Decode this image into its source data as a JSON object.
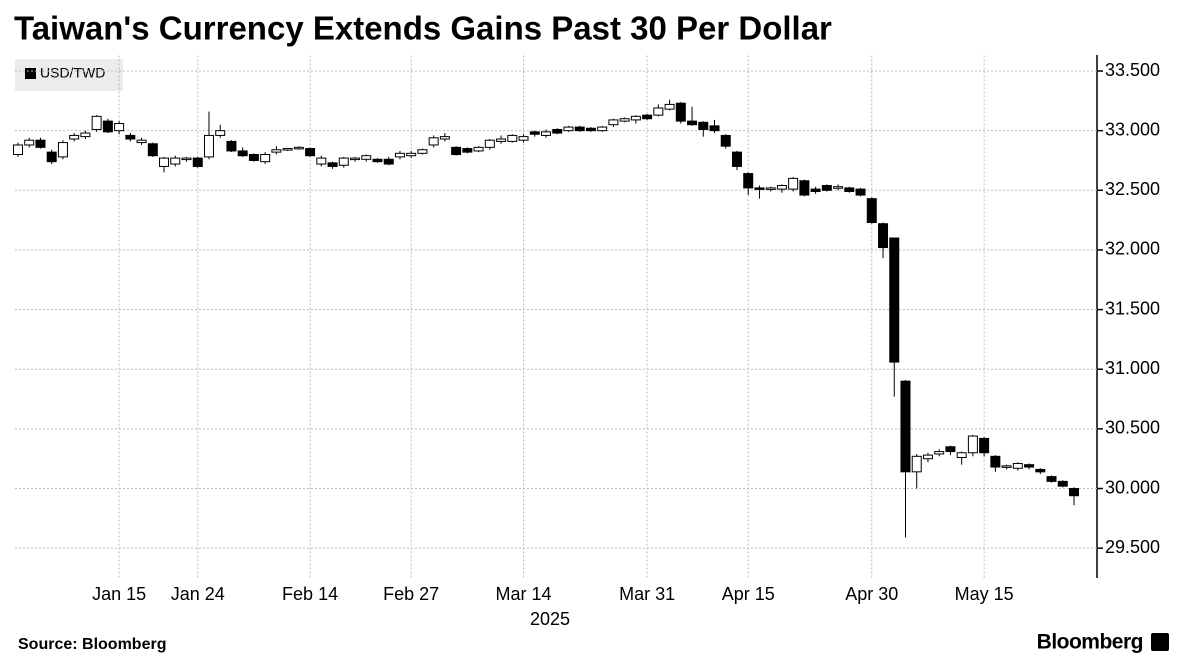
{
  "chart_data": {
    "type": "candlestick",
    "title": "Taiwan's Currency Extends Gains Past 30 Per Dollar",
    "xlabel": "2025",
    "source": "Source: Bloomberg",
    "brand": "Bloomberg",
    "legend": "top-left",
    "grid": true,
    "up_color": "#ffffff",
    "down_color": "#000000",
    "x": [
      "2025-01-02",
      "2025-01-03",
      "2025-01-06",
      "2025-01-07",
      "2025-01-08",
      "2025-01-09",
      "2025-01-10",
      "2025-01-13",
      "2025-01-14",
      "2025-01-15",
      "2025-01-16",
      "2025-01-17",
      "2025-01-20",
      "2025-01-21",
      "2025-01-22",
      "2025-01-23",
      "2025-01-24",
      "2025-02-03",
      "2025-02-04",
      "2025-02-05",
      "2025-02-06",
      "2025-02-07",
      "2025-02-10",
      "2025-02-11",
      "2025-02-12",
      "2025-02-13",
      "2025-02-14",
      "2025-02-17",
      "2025-02-18",
      "2025-02-19",
      "2025-02-20",
      "2025-02-21",
      "2025-02-24",
      "2025-02-25",
      "2025-02-26",
      "2025-02-27",
      "2025-03-03",
      "2025-03-04",
      "2025-03-05",
      "2025-03-06",
      "2025-03-07",
      "2025-03-10",
      "2025-03-11",
      "2025-03-12",
      "2025-03-13",
      "2025-03-14",
      "2025-03-17",
      "2025-03-18",
      "2025-03-19",
      "2025-03-20",
      "2025-03-21",
      "2025-03-24",
      "2025-03-25",
      "2025-03-26",
      "2025-03-27",
      "2025-03-28",
      "2025-03-31",
      "2025-04-01",
      "2025-04-02",
      "2025-04-07",
      "2025-04-08",
      "2025-04-09",
      "2025-04-10",
      "2025-04-11",
      "2025-04-14",
      "2025-04-15",
      "2025-04-16",
      "2025-04-17",
      "2025-04-18",
      "2025-04-21",
      "2025-04-22",
      "2025-04-23",
      "2025-04-24",
      "2025-04-25",
      "2025-04-28",
      "2025-04-29",
      "2025-04-30",
      "2025-05-02",
      "2025-05-05",
      "2025-05-06",
      "2025-05-07",
      "2025-05-08",
      "2025-05-09",
      "2025-05-12",
      "2025-05-13",
      "2025-05-14",
      "2025-05-15",
      "2025-05-16",
      "2025-05-19",
      "2025-05-20",
      "2025-05-21",
      "2025-05-22",
      "2025-05-23",
      "2025-05-26",
      "2025-05-27"
    ],
    "series": [
      {
        "name": "USD/TWD",
        "open": [
          32.8,
          32.88,
          32.92,
          32.82,
          32.78,
          32.93,
          32.95,
          33.01,
          33.08,
          33.0,
          32.96,
          32.9,
          32.89,
          32.7,
          32.72,
          32.76,
          32.77,
          32.78,
          32.96,
          32.91,
          32.83,
          32.8,
          32.74,
          32.82,
          32.84,
          32.85,
          32.85,
          32.72,
          32.73,
          32.71,
          32.76,
          32.76,
          32.76,
          32.76,
          32.78,
          32.79,
          32.81,
          32.88,
          32.93,
          32.86,
          32.85,
          32.83,
          32.86,
          32.91,
          32.91,
          32.92,
          32.99,
          32.96,
          33.01,
          33.0,
          33.03,
          33.02,
          33.0,
          33.05,
          33.08,
          33.09,
          33.13,
          33.13,
          33.18,
          33.23,
          33.08,
          33.07,
          33.04,
          32.96,
          32.82,
          32.64,
          32.52,
          32.51,
          32.51,
          32.51,
          32.58,
          32.51,
          32.54,
          32.52,
          32.52,
          32.51,
          32.43,
          32.22,
          32.1,
          30.9,
          30.14,
          30.25,
          30.29,
          30.35,
          30.26,
          30.3,
          30.42,
          30.27,
          30.18,
          30.17,
          30.2,
          30.16,
          30.1,
          30.06,
          30.0
        ],
        "high": [
          32.9,
          32.94,
          32.94,
          32.84,
          32.92,
          32.98,
          33.0,
          33.13,
          33.1,
          33.08,
          32.98,
          32.94,
          32.9,
          32.78,
          32.79,
          32.78,
          32.78,
          33.16,
          33.05,
          32.92,
          32.86,
          32.81,
          32.82,
          32.87,
          32.85,
          32.87,
          32.86,
          32.79,
          32.74,
          32.78,
          32.78,
          32.8,
          32.77,
          32.78,
          32.83,
          32.83,
          32.85,
          32.96,
          32.98,
          32.87,
          32.86,
          32.87,
          32.93,
          32.96,
          32.97,
          32.97,
          33.0,
          33.01,
          33.02,
          33.04,
          33.04,
          33.03,
          33.04,
          33.1,
          33.11,
          33.13,
          33.14,
          33.22,
          33.26,
          33.24,
          33.2,
          33.08,
          33.09,
          32.97,
          32.83,
          32.65,
          32.54,
          32.53,
          32.55,
          32.61,
          32.59,
          32.53,
          32.55,
          32.55,
          32.53,
          32.52,
          32.44,
          32.23,
          32.1,
          30.91,
          30.29,
          30.3,
          30.33,
          30.36,
          30.31,
          30.45,
          30.43,
          30.28,
          30.2,
          30.22,
          30.21,
          30.17,
          30.11,
          30.07,
          30.01
        ],
        "low": [
          32.78,
          32.86,
          32.85,
          32.72,
          32.76,
          32.91,
          32.93,
          32.99,
          32.98,
          32.97,
          32.91,
          32.88,
          32.78,
          32.65,
          32.7,
          32.74,
          32.69,
          32.76,
          32.94,
          32.82,
          32.78,
          32.74,
          32.72,
          32.8,
          32.83,
          32.84,
          32.78,
          32.7,
          32.68,
          32.69,
          32.74,
          32.74,
          32.73,
          32.71,
          32.76,
          32.77,
          32.8,
          32.86,
          32.91,
          32.79,
          32.81,
          32.82,
          32.84,
          32.89,
          32.9,
          32.9,
          32.95,
          32.94,
          32.97,
          32.99,
          32.99,
          32.99,
          32.99,
          33.03,
          33.07,
          33.06,
          33.09,
          33.12,
          33.17,
          33.06,
          33.04,
          32.95,
          32.98,
          32.85,
          32.67,
          32.46,
          32.43,
          32.49,
          32.48,
          32.49,
          32.45,
          32.47,
          32.49,
          32.5,
          32.48,
          32.45,
          32.22,
          31.93,
          30.77,
          29.59,
          30.0,
          30.22,
          30.27,
          30.28,
          30.2,
          30.27,
          30.27,
          30.14,
          30.16,
          30.15,
          30.16,
          30.12,
          30.05,
          30.01,
          29.86
        ],
        "close": [
          32.88,
          32.92,
          32.86,
          32.74,
          32.9,
          32.96,
          32.98,
          33.12,
          32.99,
          33.06,
          32.93,
          32.92,
          32.79,
          32.77,
          32.77,
          32.77,
          32.7,
          32.96,
          33.0,
          32.83,
          32.79,
          32.75,
          32.8,
          32.84,
          32.85,
          32.86,
          32.79,
          32.77,
          32.7,
          32.77,
          32.77,
          32.79,
          32.74,
          32.72,
          32.81,
          32.81,
          32.84,
          32.94,
          32.95,
          32.8,
          32.82,
          32.86,
          32.92,
          32.93,
          32.96,
          32.95,
          32.97,
          32.99,
          32.98,
          33.03,
          33.0,
          33.0,
          33.03,
          33.09,
          33.1,
          33.12,
          33.1,
          33.19,
          33.22,
          33.08,
          33.05,
          33.01,
          33.0,
          32.87,
          32.7,
          32.52,
          32.51,
          32.52,
          32.54,
          32.6,
          32.46,
          32.49,
          32.5,
          32.53,
          32.49,
          32.46,
          32.23,
          32.02,
          31.06,
          30.14,
          30.27,
          30.28,
          30.31,
          30.31,
          30.3,
          30.44,
          30.3,
          30.18,
          30.19,
          30.21,
          30.18,
          30.14,
          30.06,
          30.02,
          29.94
        ]
      }
    ],
    "ylim": [
      29.25,
      33.63
    ],
    "yticks": [
      {
        "value": 29.5,
        "label": "29.500"
      },
      {
        "value": 30,
        "label": "30.000"
      },
      {
        "value": 30.5,
        "label": "30.500"
      },
      {
        "value": 31,
        "label": "31.000"
      },
      {
        "value": 31.5,
        "label": "31.500"
      },
      {
        "value": 32,
        "label": "32.000"
      },
      {
        "value": 32.5,
        "label": "32.500"
      },
      {
        "value": 33,
        "label": "33.000"
      },
      {
        "value": 33.5,
        "label": "33.500"
      }
    ],
    "xticks": [
      {
        "value": "2025-01-15",
        "label": "Jan 15"
      },
      {
        "value": "2025-01-24",
        "label": "Jan 24"
      },
      {
        "value": "2025-02-14",
        "label": "Feb 14"
      },
      {
        "value": "2025-02-27",
        "label": "Feb 27"
      },
      {
        "value": "2025-03-14",
        "label": "Mar 14"
      },
      {
        "value": "2025-03-31",
        "label": "Mar 31"
      },
      {
        "value": "2025-04-15",
        "label": "Apr 15"
      },
      {
        "value": "2025-04-30",
        "label": "Apr 30"
      },
      {
        "value": "2025-05-15",
        "label": "May 15"
      }
    ]
  }
}
